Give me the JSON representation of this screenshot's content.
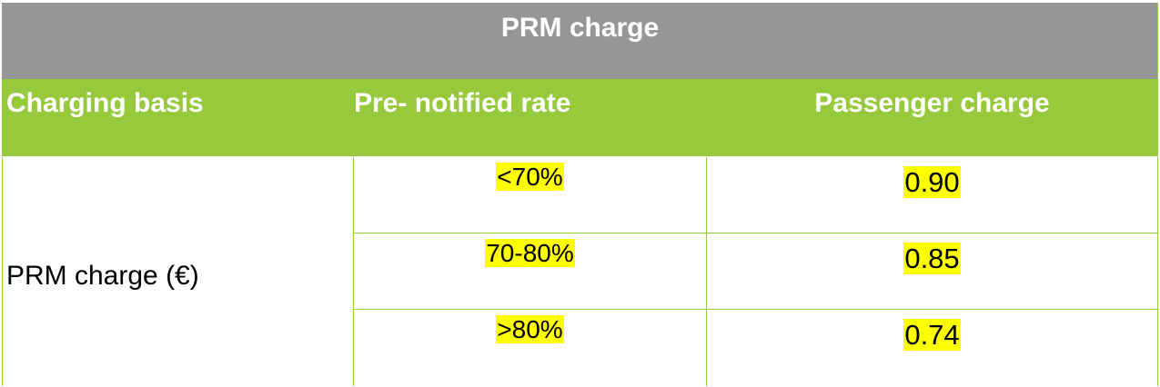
{
  "table": {
    "title": "PRM charge",
    "headers": [
      "Charging basis",
      "Pre- notified rate",
      "Passenger charge"
    ],
    "basis_label": "PRM charge (€)",
    "rows": [
      {
        "rate": "<70%",
        "charge": "0.90"
      },
      {
        "rate": "70-80%",
        "charge": "0.85"
      },
      {
        "rate": ">80%",
        "charge": "0.74"
      }
    ],
    "colors": {
      "title_bg": "#969696",
      "header_bg": "#97c93d",
      "highlight": "#ffff00",
      "border": "#9bc93c"
    }
  }
}
